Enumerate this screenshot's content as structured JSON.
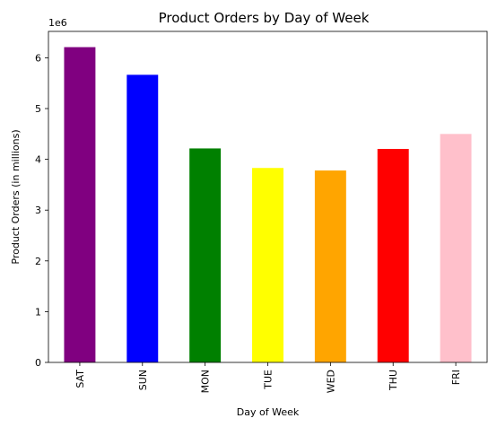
{
  "chart_data": {
    "type": "bar",
    "title": "Product Orders by Day of Week",
    "xlabel": "Day of Week",
    "ylabel": "Product Orders (in millions)",
    "y_offset_label": "1e6",
    "categories": [
      "SAT",
      "SUN",
      "MON",
      "TUE",
      "WED",
      "THU",
      "FRI"
    ],
    "values": [
      6210000,
      5665000,
      4215000,
      3830000,
      3780000,
      4205000,
      4500000
    ],
    "colors": [
      "#800080",
      "#0000ff",
      "#008000",
      "#ffff00",
      "#ffa500",
      "#ff0000",
      "#ffc0cb"
    ],
    "ylim": [
      0,
      6520000
    ],
    "yticks": [
      0,
      1,
      2,
      3,
      4,
      5,
      6
    ],
    "ytick_scale": 1000000,
    "grid": false,
    "legend": false
  }
}
